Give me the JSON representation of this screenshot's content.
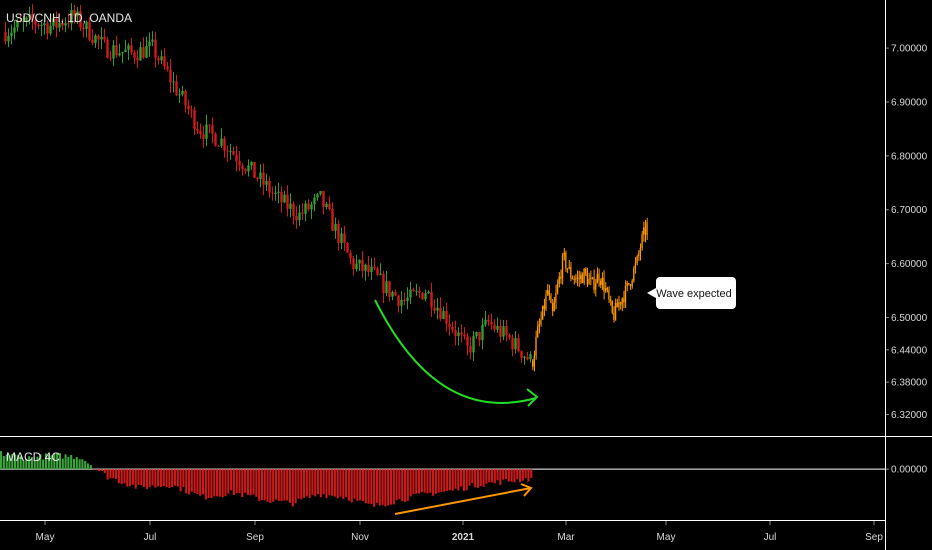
{
  "chart_data": {
    "type": "candlestick",
    "title": "USD/CNH, 1D, OANDA",
    "price_axis": {
      "ticks": [
        "7.00000",
        "6.90000",
        "6.80000",
        "6.70000",
        "6.60000",
        "6.50000",
        "6.44000",
        "6.38000",
        "6.32000"
      ],
      "ylim": [
        6.28,
        7.08
      ]
    },
    "time_axis": {
      "ticks": [
        {
          "label": "May",
          "bold": false
        },
        {
          "label": "Jul",
          "bold": false
        },
        {
          "label": "Sep",
          "bold": false
        },
        {
          "label": "Nov",
          "bold": false
        },
        {
          "label": "2021",
          "bold": true
        },
        {
          "label": "Mar",
          "bold": false
        },
        {
          "label": "May",
          "bold": false
        },
        {
          "label": "Jul",
          "bold": false
        },
        {
          "label": "Sep",
          "bold": false
        }
      ]
    },
    "price_path": {
      "x": [
        0,
        0.05,
        0.09,
        0.13,
        0.15,
        0.19,
        0.24,
        0.28,
        0.31,
        0.34,
        0.37,
        0.41,
        0.44,
        0.48,
        0.52,
        0.56,
        0.6,
        0.63,
        0.66,
        0.7,
        0.73,
        0.76,
        0.8,
        0.84,
        0.88,
        0.92,
        0.96,
        1
      ],
      "close": [
        7.03,
        7.05,
        7.04,
        7.06,
        7.04,
        7.0,
        6.99,
        7.0,
        6.95,
        6.9,
        6.85,
        6.83,
        6.8,
        6.76,
        6.72,
        6.69,
        6.72,
        6.66,
        6.6,
        6.58,
        6.55,
        6.53,
        6.55,
        6.5,
        6.44,
        6.49,
        6.46,
        6.42
      ]
    },
    "projection": {
      "label": "Wave expected",
      "color": "#ff9800",
      "x": [
        0,
        0.04,
        0.08,
        0.13,
        0.17,
        0.22,
        0.27,
        0.33,
        0.39,
        0.45,
        0.52,
        0.58,
        0.64,
        0.7,
        0.76,
        0.82,
        0.87,
        0.91,
        0.95,
        1
      ],
      "close": [
        6.42,
        6.47,
        6.5,
        6.55,
        6.5,
        6.56,
        6.61,
        6.58,
        6.57,
        6.58,
        6.56,
        6.58,
        6.55,
        6.5,
        6.53,
        6.55,
        6.58,
        6.6,
        6.64,
        6.67
      ]
    },
    "annotations": {
      "curved_arrow_color": "#22dd22",
      "divergence_arrow_color": "#ff9800"
    },
    "indicator": {
      "name": "MACD 4C",
      "ticks": [
        "0.00000"
      ],
      "positive_color": "#3aa53a",
      "negative_color": "#cc1a1a",
      "x": [
        0,
        0.05,
        0.1,
        0.15,
        0.2,
        0.26,
        0.32,
        0.38,
        0.44,
        0.5,
        0.55,
        0.6,
        0.65,
        0.7,
        0.75,
        0.8,
        0.85,
        0.9,
        0.95,
        1
      ],
      "values": [
        0.025,
        0.018,
        0.022,
        0.02,
        -0.012,
        -0.03,
        -0.025,
        -0.045,
        -0.038,
        -0.05,
        -0.055,
        -0.04,
        -0.045,
        -0.06,
        -0.05,
        -0.04,
        -0.035,
        -0.025,
        -0.02,
        -0.015
      ],
      "ylim": [
        -0.08,
        0.05
      ]
    },
    "up_color": "#2e9e2e",
    "down_color": "#d11a1a",
    "grid": false
  }
}
